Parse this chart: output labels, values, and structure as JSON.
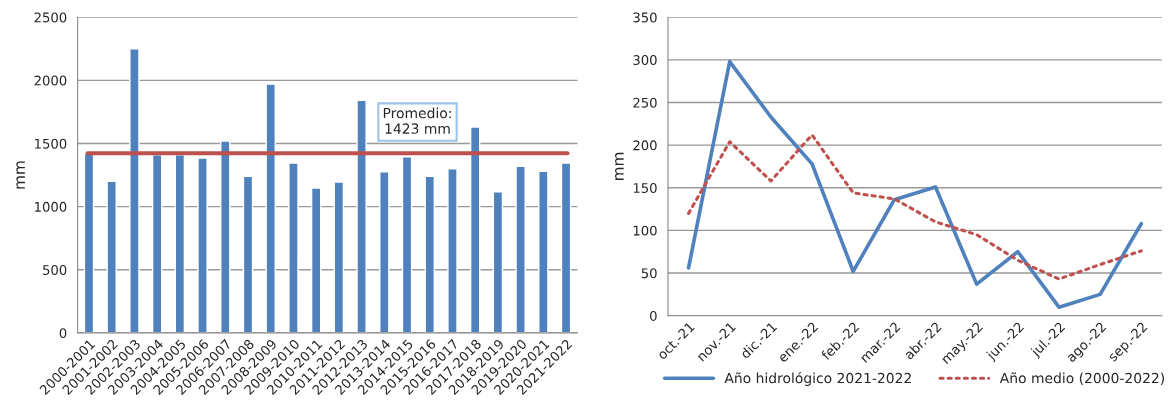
{
  "chart_data": [
    {
      "type": "bar",
      "ylabel": "mm",
      "categories": [
        "2000-2001",
        "2001-2002",
        "2002-2003",
        "2003-2004",
        "2004-2005",
        "2005-2006",
        "2006-2007",
        "2007-2008",
        "2008-2009",
        "2009-2010",
        "2010-2011",
        "2011-2012",
        "2012-2013",
        "2013-2014",
        "2014-2015",
        "2015-2016",
        "2016-2017",
        "2017-2018",
        "2018-2019",
        "2019-2020",
        "2020-2021",
        "2021-2022"
      ],
      "values": [
        1420,
        1200,
        2250,
        1410,
        1410,
        1385,
        1520,
        1240,
        1970,
        1345,
        1147,
        1195,
        1843,
        1275,
        1395,
        1240,
        1300,
        1630,
        1118,
        1320,
        1280,
        1345
      ],
      "color": "#4f81bd",
      "ylim": [
        0,
        2500
      ],
      "yticks": [
        0,
        500,
        1000,
        1500,
        2000,
        2500
      ],
      "grid": "y",
      "ref_lines": [
        {
          "axis": "y",
          "value": 1423,
          "label": "Promedio:\n1423 mm",
          "color": "#c0504d",
          "line_style": "solid"
        }
      ]
    },
    {
      "type": "line",
      "ylabel": "mm",
      "categories": [
        "oct.-21",
        "nov.-21",
        "dic.-21",
        "ene.-22",
        "feb.-22",
        "mar.-22",
        "abr.-22",
        "may.-22",
        "jun.-22",
        "jul.-22",
        "ago.-22",
        "sep.-22"
      ],
      "series": [
        {
          "name": "Año hidrológico 2021-2022",
          "color": "#4f81bd",
          "line_style": "solid",
          "values": [
            56,
            298,
            233,
            178,
            52,
            136,
            151,
            37,
            75,
            10,
            25,
            108
          ]
        },
        {
          "name": "Año medio (2000-2022)",
          "color": "#c0504d",
          "line_style": "dotted",
          "values": [
            120,
            204,
            158,
            212,
            144,
            137,
            110,
            95,
            65,
            43,
            60,
            76
          ]
        }
      ],
      "ylim": [
        0,
        350
      ],
      "yticks": [
        0,
        50,
        100,
        150,
        200,
        250,
        300,
        350
      ],
      "grid": "y",
      "legend": "bottom"
    }
  ]
}
